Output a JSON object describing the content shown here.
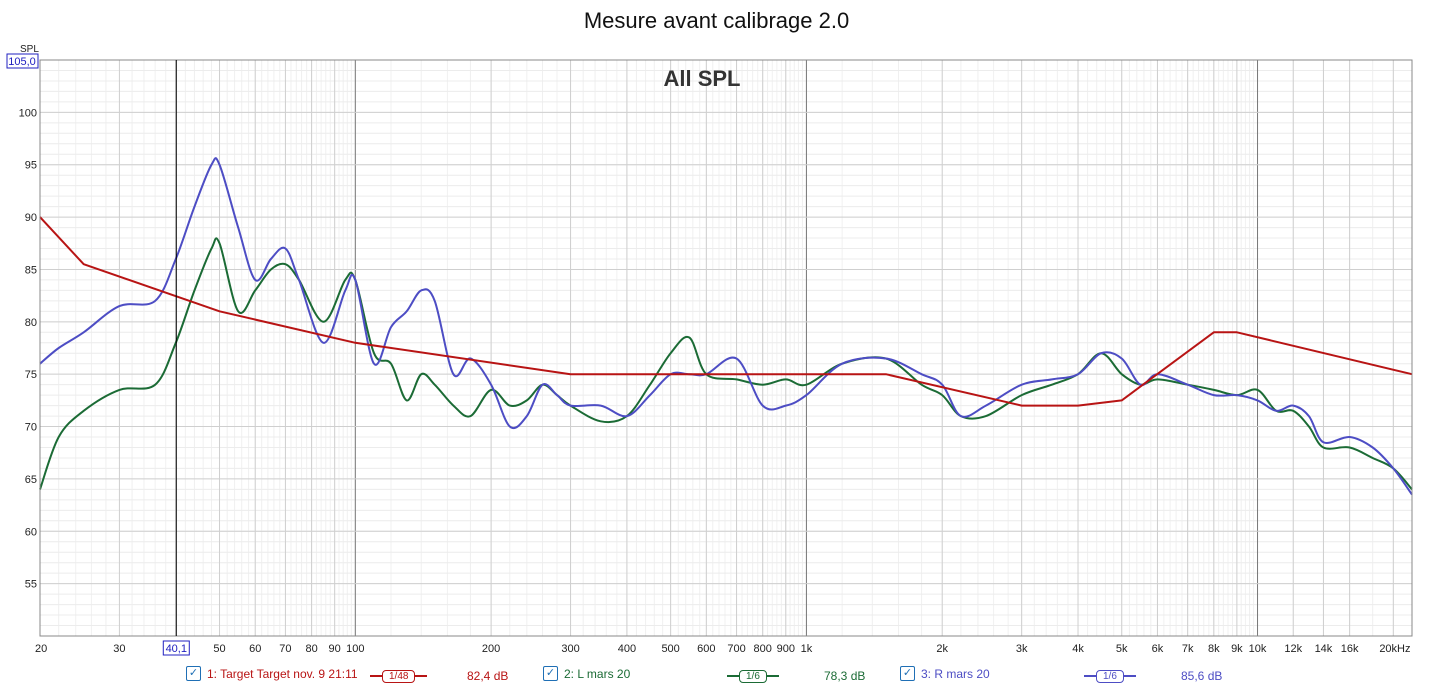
{
  "title": "Mesure avant calibrage 2.0",
  "chart_data": {
    "type": "line",
    "title": "Mesure avant calibrage 2.0",
    "subtitle": "All SPL",
    "ylabel": "SPL",
    "xlabel": "",
    "xscale": "log",
    "xlim": [
      20,
      22000
    ],
    "ylim": [
      50,
      105
    ],
    "grid": true,
    "y_top_readout": "105,0",
    "cursor": {
      "x": 40.1,
      "label": "40,1"
    },
    "x_ticks": [
      {
        "v": 20,
        "l": "20"
      },
      {
        "v": 30,
        "l": "30"
      },
      {
        "v": 40,
        "l": "40"
      },
      {
        "v": 50,
        "l": "50"
      },
      {
        "v": 60,
        "l": "60"
      },
      {
        "v": 70,
        "l": "70"
      },
      {
        "v": 80,
        "l": "80"
      },
      {
        "v": 90,
        "l": "90"
      },
      {
        "v": 100,
        "l": "100"
      },
      {
        "v": 200,
        "l": "200"
      },
      {
        "v": 300,
        "l": "300"
      },
      {
        "v": 400,
        "l": "400"
      },
      {
        "v": 500,
        "l": "500"
      },
      {
        "v": 600,
        "l": "600"
      },
      {
        "v": 700,
        "l": "700"
      },
      {
        "v": 800,
        "l": "800"
      },
      {
        "v": 900,
        "l": "900"
      },
      {
        "v": 1000,
        "l": "1k"
      },
      {
        "v": 2000,
        "l": "2k"
      },
      {
        "v": 3000,
        "l": "3k"
      },
      {
        "v": 4000,
        "l": "4k"
      },
      {
        "v": 5000,
        "l": "5k"
      },
      {
        "v": 6000,
        "l": "6k"
      },
      {
        "v": 7000,
        "l": "7k"
      },
      {
        "v": 8000,
        "l": "8k"
      },
      {
        "v": 9000,
        "l": "9k"
      },
      {
        "v": 10000,
        "l": "10k"
      },
      {
        "v": 12000,
        "l": "12k"
      },
      {
        "v": 14000,
        "l": "14k"
      },
      {
        "v": 16000,
        "l": "16k"
      },
      {
        "v": 20000,
        "l": "20kHz"
      }
    ],
    "y_ticks": [
      55,
      60,
      65,
      70,
      75,
      80,
      85,
      90,
      95,
      100
    ],
    "series": [
      {
        "name": "1: Target Target nov. 9 21:11",
        "smoothing": "1/48",
        "readout": "82,4 dB",
        "color": "#b81414",
        "x": [
          20,
          25,
          50,
          100,
          300,
          1500,
          3000,
          4000,
          5000,
          8000,
          9000,
          22000
        ],
        "y": [
          90,
          85.5,
          81,
          78,
          75,
          75,
          72,
          72,
          72.5,
          79,
          79,
          75
        ]
      },
      {
        "name": "2: L mars 20",
        "smoothing": "1/6",
        "readout": "78,3 dB",
        "color": "#1b6b35",
        "x": [
          20,
          22,
          25,
          30,
          36,
          40,
          44,
          48,
          50,
          55,
          60,
          65,
          70,
          75,
          85,
          95,
          100,
          110,
          120,
          130,
          140,
          150,
          165,
          180,
          200,
          220,
          240,
          260,
          280,
          300,
          350,
          400,
          450,
          500,
          550,
          600,
          700,
          800,
          900,
          1000,
          1200,
          1500,
          1800,
          2000,
          2200,
          2500,
          3000,
          3500,
          4000,
          4500,
          5000,
          5500,
          6000,
          7000,
          8000,
          9000,
          10000,
          11000,
          12000,
          13000,
          14000,
          16000,
          18000,
          20000,
          22000
        ],
        "y": [
          64,
          69,
          71.5,
          73.5,
          74,
          78,
          83,
          87,
          87.5,
          81,
          83,
          85,
          85.5,
          84,
          80,
          84,
          84,
          77,
          76,
          72.5,
          75,
          74,
          72,
          71,
          73.5,
          72,
          72.5,
          74,
          73,
          72,
          70.5,
          71,
          74,
          77,
          78.5,
          75,
          74.5,
          74,
          74.5,
          74,
          76,
          76.5,
          74,
          73,
          71,
          71,
          73,
          74,
          75,
          77,
          75,
          74,
          74.5,
          74,
          73.5,
          73,
          73.5,
          71.5,
          71.5,
          70,
          68,
          68,
          67,
          66,
          64
        ]
      },
      {
        "name": "3: R mars 20",
        "smoothing": "1/6",
        "readout": "85,6 dB",
        "color": "#4d4dc4",
        "x": [
          20,
          22,
          25,
          30,
          36,
          40,
          44,
          48,
          50,
          55,
          60,
          65,
          70,
          75,
          85,
          95,
          100,
          110,
          120,
          130,
          140,
          150,
          165,
          180,
          200,
          220,
          240,
          260,
          280,
          300,
          350,
          400,
          450,
          500,
          550,
          600,
          700,
          800,
          900,
          1000,
          1200,
          1500,
          1800,
          2000,
          2200,
          2500,
          3000,
          3500,
          4000,
          4500,
          5000,
          5500,
          6000,
          7000,
          8000,
          9000,
          10000,
          11000,
          12000,
          13000,
          14000,
          16000,
          18000,
          20000,
          22000
        ],
        "y": [
          76,
          77.5,
          79,
          81.5,
          82,
          86,
          91,
          95,
          95,
          89,
          84,
          86,
          87,
          84,
          78,
          83,
          84,
          76,
          79.5,
          81,
          83,
          82,
          75,
          76.5,
          74,
          70,
          71,
          74,
          73,
          72,
          72,
          71,
          73,
          75,
          75,
          75,
          76.5,
          72,
          72,
          73,
          76,
          76.5,
          75,
          74,
          71,
          72,
          74,
          74.5,
          75,
          77,
          76.5,
          74,
          75,
          74,
          73,
          73,
          72.5,
          71.5,
          72,
          71,
          68.5,
          69,
          68,
          66,
          63.5
        ]
      }
    ]
  }
}
